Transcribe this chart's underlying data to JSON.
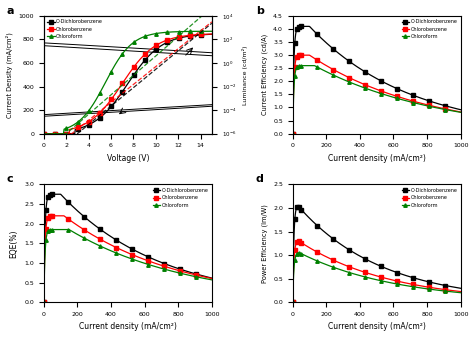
{
  "panel_a": {
    "title": "a",
    "xlabel": "Voltage (V)",
    "ylabel_left": "Current Density (mA/cm²)",
    "ylabel_right": "Luminance (cd/m²)",
    "xlim": [
      0,
      15
    ],
    "ylim_left": [
      0,
      1000
    ],
    "ylim_right": [
      1e-06,
      10000.0
    ],
    "legend": [
      "O-Dichlorobenzene",
      "Chlorobenzene",
      "Chloroform"
    ],
    "colors": [
      "black",
      "red",
      "green"
    ]
  },
  "panel_b": {
    "title": "b",
    "xlabel": "Current density (mA/cm²)",
    "ylabel": "Current Efficiency (cd/A)",
    "xlim": [
      0,
      1000
    ],
    "ylim": [
      0,
      4.5
    ],
    "legend": [
      "O-Dichlorobenzene",
      "Chlorobenzene",
      "Chloroform"
    ],
    "colors": [
      "black",
      "red",
      "green"
    ]
  },
  "panel_c": {
    "title": "c",
    "xlabel": "Current density (mA/cm²)",
    "ylabel": "EQE(%)",
    "xlim": [
      0,
      1000
    ],
    "ylim": [
      0,
      3.0
    ],
    "legend": [
      "O-Dichlorobenzene",
      "Chlorobenzene",
      "Chloroform"
    ],
    "colors": [
      "black",
      "red",
      "green"
    ]
  },
  "panel_d": {
    "title": "d",
    "xlabel": "Current density (mA/cm²)",
    "ylabel": "Power Efficiency (lm/W)",
    "xlim": [
      0,
      1000
    ],
    "ylim": [
      0,
      2.5
    ],
    "legend": [
      "O-Dichlorobenzene",
      "Chlorobenzene",
      "Chloroform"
    ],
    "colors": [
      "black",
      "red",
      "green"
    ]
  }
}
